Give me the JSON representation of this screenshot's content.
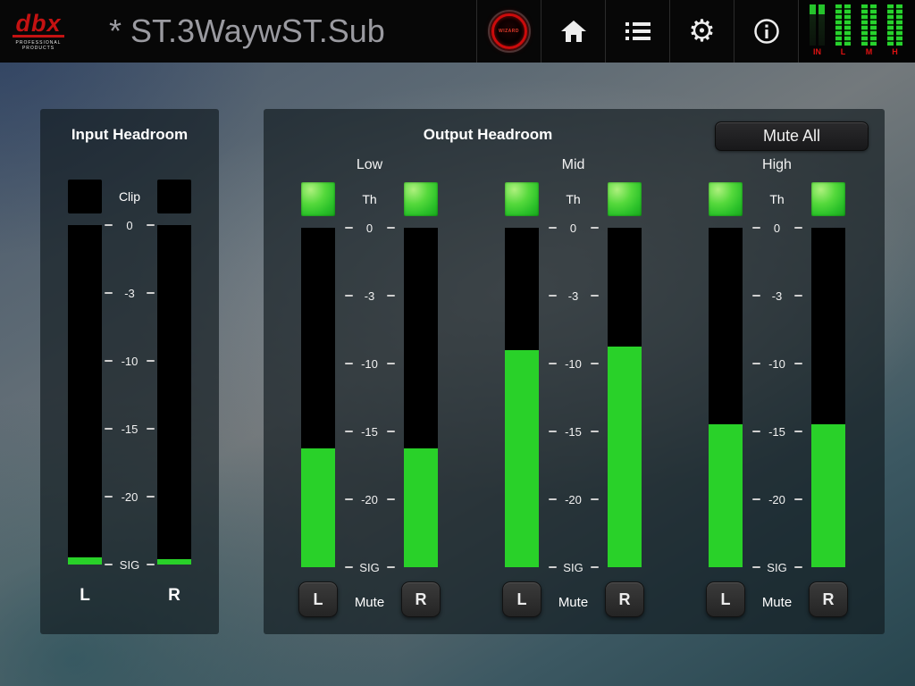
{
  "header": {
    "title": "* ST.3WaywST.Sub",
    "logo": {
      "brand": "dbx",
      "tagline": "PROFESSIONAL PRODUCTS"
    },
    "wizard_button": "WIZARD",
    "meter_labels": [
      "IN",
      "L",
      "M",
      "H"
    ]
  },
  "input_headroom": {
    "title": "Input Headroom",
    "clip_label": "Clip",
    "scale": [
      "0",
      "-3",
      "-10",
      "-15",
      "-20",
      "SIG"
    ],
    "channels": [
      {
        "label": "L",
        "level_pct": 2
      },
      {
        "label": "R",
        "level_pct": 1.5
      }
    ]
  },
  "output_headroom": {
    "title": "Output Headroom",
    "mute_all_button": "Mute All",
    "th_label": "Th",
    "mute_label": "Mute",
    "scale": [
      "0",
      "-3",
      "-10",
      "-15",
      "-20",
      "SIG"
    ],
    "bands": [
      {
        "name": "Low",
        "left": {
          "label": "L",
          "level_pct": 35
        },
        "right": {
          "label": "R",
          "level_pct": 35
        }
      },
      {
        "name": "Mid",
        "left": {
          "label": "L",
          "level_pct": 64
        },
        "right": {
          "label": "R",
          "level_pct": 65
        }
      },
      {
        "name": "High",
        "left": {
          "label": "L",
          "level_pct": 42
        },
        "right": {
          "label": "R",
          "level_pct": 42
        }
      }
    ]
  },
  "colors": {
    "meter_green": "#29d129",
    "accent_red": "#c41212",
    "panel_bg": "rgba(17,26,31,0.66)"
  }
}
